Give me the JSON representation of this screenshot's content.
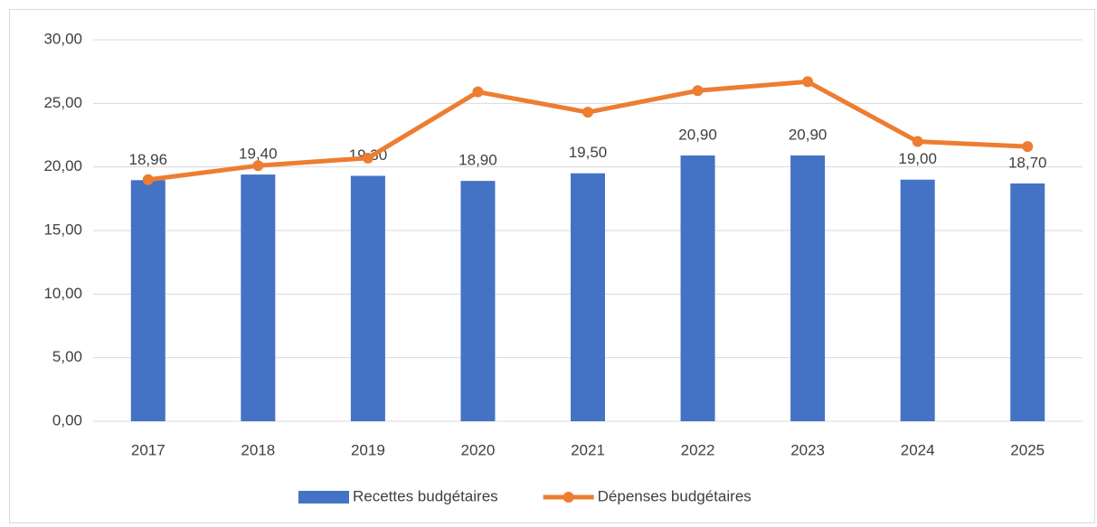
{
  "chart_data": {
    "type": "combo",
    "categories": [
      "2017",
      "2018",
      "2019",
      "2020",
      "2021",
      "2022",
      "2023",
      "2024",
      "2025"
    ],
    "series": [
      {
        "name": "Recettes budgétaires",
        "type": "bar",
        "color": "#4472c4",
        "values": [
          18.96,
          19.4,
          19.3,
          18.9,
          19.5,
          20.9,
          20.9,
          19.0,
          18.7
        ],
        "value_labels": [
          "18,96",
          "19,40",
          "19,30",
          "18,90",
          "19,50",
          "20,90",
          "20,90",
          "19,00",
          "18,70"
        ]
      },
      {
        "name": "Dépenses budgétaires",
        "type": "line",
        "color": "#ed7d31",
        "values": [
          19.0,
          20.1,
          20.7,
          25.9,
          24.3,
          26.0,
          26.7,
          22.0,
          21.6
        ]
      }
    ],
    "ylim": [
      0,
      30
    ],
    "yticks": [
      {
        "value": 0,
        "label": "0,00"
      },
      {
        "value": 5,
        "label": "5,00"
      },
      {
        "value": 10,
        "label": "10,00"
      },
      {
        "value": 15,
        "label": "15,00"
      },
      {
        "value": 20,
        "label": "20,00"
      },
      {
        "value": 25,
        "label": "25,00"
      },
      {
        "value": 30,
        "label": "30,00"
      }
    ],
    "grid": true,
    "legend": "bottom"
  }
}
